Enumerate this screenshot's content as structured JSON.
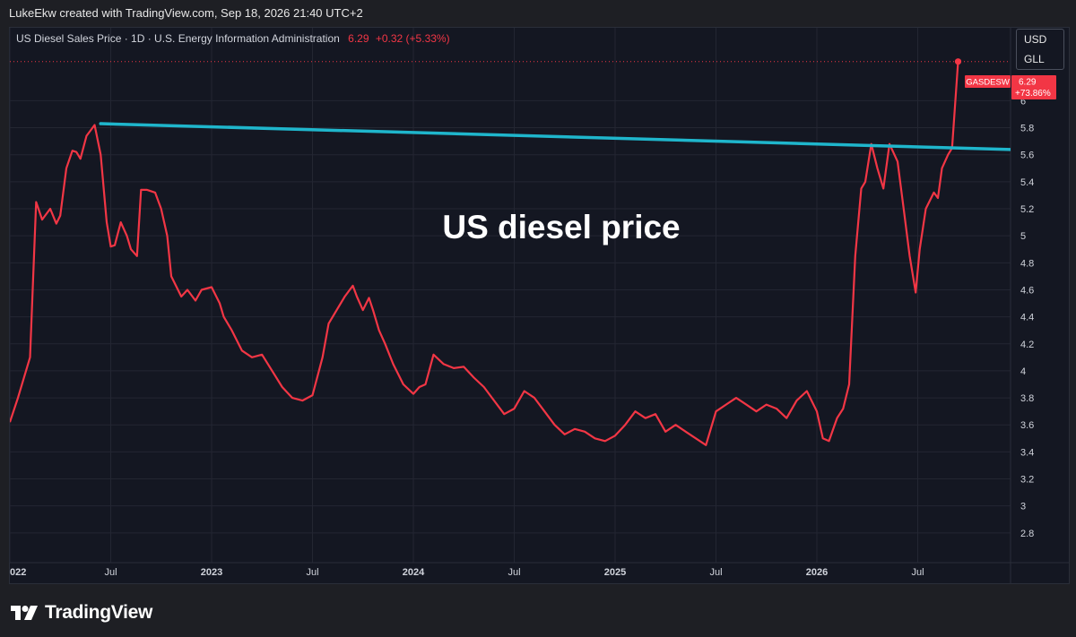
{
  "header": {
    "attribution": "LukeEkw created with TradingView.com, Sep 18, 2026 21:40 UTC+2"
  },
  "legend": {
    "title": "US Diesel Sales Price · 1D · U.S. Energy Information Administration",
    "last": "6.29",
    "change": "+0.32 (+5.33%)"
  },
  "units": {
    "currency": "USD",
    "volume_unit": "GLL"
  },
  "annotation": {
    "text": "US diesel price"
  },
  "price_tag": {
    "symbol": "GASDESW",
    "value": "6.29",
    "change_pct": "+73.86%"
  },
  "footer": {
    "brand": "TradingView"
  },
  "colors": {
    "series": "#f23645",
    "trendline": "#1fb6cc",
    "background": "#141722",
    "grid": "#2a2e39"
  },
  "chart_data": {
    "type": "line",
    "title": "US Diesel Sales Price",
    "y_ticks": [
      2.8,
      3,
      3.2,
      3.4,
      3.6,
      3.8,
      4,
      4.2,
      4.4,
      4.6,
      4.8,
      5,
      5.2,
      5.4,
      5.6,
      5.8,
      6
    ],
    "ylim": [
      2.58,
      6.54
    ],
    "x_ticks": [
      {
        "t": 2022.0,
        "label": "022"
      },
      {
        "t": 2022.5,
        "label": "Jul"
      },
      {
        "t": 2023.0,
        "label": "2023"
      },
      {
        "t": 2023.5,
        "label": "Jul"
      },
      {
        "t": 2024.0,
        "label": "2024"
      },
      {
        "t": 2024.5,
        "label": "Jul"
      },
      {
        "t": 2025.0,
        "label": "2025"
      },
      {
        "t": 2025.5,
        "label": "Jul"
      },
      {
        "t": 2026.0,
        "label": "2026"
      },
      {
        "t": 2026.5,
        "label": "Jul"
      }
    ],
    "xlim": [
      2022.0,
      2026.96
    ],
    "grid": true,
    "series": [
      {
        "x": [
          2022.0,
          2022.04,
          2022.08,
          2022.1,
          2022.13,
          2022.16,
          2022.2,
          2022.23,
          2022.25,
          2022.28,
          2022.31,
          2022.33,
          2022.35,
          2022.38,
          2022.4,
          2022.42,
          2022.45,
          2022.48,
          2022.5,
          2022.52,
          2022.55,
          2022.58,
          2022.6,
          2022.63,
          2022.65,
          2022.68,
          2022.72,
          2022.75,
          2022.78,
          2022.8,
          2022.85,
          2022.88,
          2022.92,
          2022.95,
          2023.0,
          2023.04,
          2023.06,
          2023.1,
          2023.15,
          2023.2,
          2023.25,
          2023.3,
          2023.35,
          2023.4,
          2023.45,
          2023.5,
          2023.55,
          2023.58,
          2023.62,
          2023.66,
          2023.7,
          2023.72,
          2023.75,
          2023.78,
          2023.8,
          2023.83,
          2023.86,
          2023.9,
          2023.95,
          2024.0,
          2024.03,
          2024.06,
          2024.1,
          2024.15,
          2024.2,
          2024.25,
          2024.3,
          2024.35,
          2024.4,
          2024.45,
          2024.5,
          2024.55,
          2024.6,
          2024.65,
          2024.7,
          2024.75,
          2024.8,
          2024.85,
          2024.9,
          2024.95,
          2025.0,
          2025.05,
          2025.1,
          2025.15,
          2025.2,
          2025.25,
          2025.3,
          2025.35,
          2025.4,
          2025.45,
          2025.5,
          2025.55,
          2025.6,
          2025.65,
          2025.7,
          2025.75,
          2025.8,
          2025.85,
          2025.9,
          2025.95,
          2026.0,
          2026.03,
          2026.06,
          2026.1,
          2026.13,
          2026.16,
          2026.19,
          2026.22,
          2026.24,
          2026.27,
          2026.3,
          2026.33,
          2026.36,
          2026.4,
          2026.43,
          2026.46,
          2026.49,
          2026.51,
          2026.54,
          2026.58,
          2026.6,
          2026.62,
          2026.65,
          2026.67,
          2026.7
        ],
        "y": [
          3.62,
          3.8,
          4.0,
          4.1,
          5.25,
          5.12,
          5.2,
          5.09,
          5.15,
          5.5,
          5.63,
          5.62,
          5.57,
          5.74,
          5.78,
          5.82,
          5.6,
          5.1,
          4.92,
          4.93,
          5.1,
          5.0,
          4.9,
          4.85,
          5.34,
          5.34,
          5.32,
          5.2,
          5.0,
          4.7,
          4.55,
          4.6,
          4.52,
          4.6,
          4.62,
          4.5,
          4.4,
          4.3,
          4.15,
          4.1,
          4.12,
          4.0,
          3.88,
          3.8,
          3.78,
          3.82,
          4.1,
          4.35,
          4.45,
          4.55,
          4.63,
          4.55,
          4.45,
          4.54,
          4.45,
          4.3,
          4.2,
          4.05,
          3.9,
          3.83,
          3.88,
          3.9,
          4.12,
          4.05,
          4.02,
          4.03,
          3.95,
          3.88,
          3.78,
          3.68,
          3.72,
          3.85,
          3.8,
          3.7,
          3.6,
          3.53,
          3.57,
          3.55,
          3.5,
          3.48,
          3.52,
          3.6,
          3.7,
          3.65,
          3.68,
          3.55,
          3.6,
          3.55,
          3.5,
          3.45,
          3.7,
          3.75,
          3.8,
          3.75,
          3.7,
          3.75,
          3.72,
          3.65,
          3.78,
          3.85,
          3.7,
          3.5,
          3.48,
          3.65,
          3.72,
          3.9,
          4.85,
          5.35,
          5.4,
          5.68,
          5.5,
          5.35,
          5.68,
          5.55,
          5.2,
          4.85,
          4.58,
          4.9,
          5.2,
          5.32,
          5.28,
          5.5,
          5.6,
          5.65,
          6.29
        ]
      }
    ],
    "trendline": {
      "x": [
        2022.45,
        2027.17
      ],
      "y": [
        5.83,
        5.63
      ]
    }
  }
}
